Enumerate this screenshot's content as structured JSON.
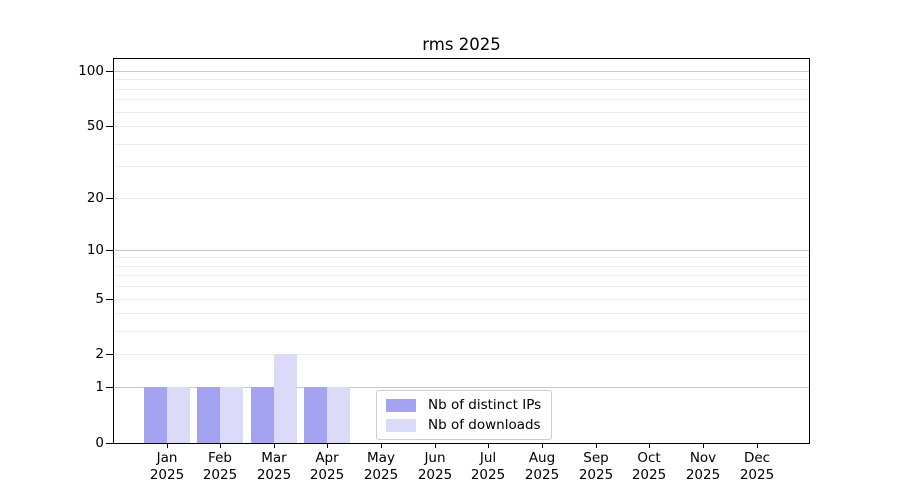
{
  "title": "rms 2025",
  "chart_data": {
    "type": "bar",
    "title": "rms 2025",
    "categories": [
      "Jan",
      "Feb",
      "Mar",
      "Apr",
      "May",
      "Jun",
      "Jul",
      "Aug",
      "Sep",
      "Oct",
      "Nov",
      "Dec"
    ],
    "category_year": "2025",
    "series": [
      {
        "name": "Nb of distinct IPs",
        "color": "#a3a3f2",
        "values": [
          1,
          1,
          1,
          1,
          0,
          0,
          0,
          0,
          0,
          0,
          0,
          0
        ]
      },
      {
        "name": "Nb of downloads",
        "color": "#dbdbf9",
        "values": [
          1,
          1,
          2,
          1,
          0,
          0,
          0,
          0,
          0,
          0,
          0,
          0
        ]
      }
    ],
    "xlabel": "",
    "ylabel": "",
    "yscale": "log1p",
    "ylim": [
      0,
      116
    ],
    "ytick_values": [
      0,
      1,
      2,
      5,
      10,
      20,
      50,
      100
    ],
    "ytick_labels": [
      "0",
      "1",
      "2",
      "5",
      "10",
      "20",
      "50",
      "100"
    ],
    "grid": true,
    "grid_major_values": [
      1,
      10,
      100
    ],
    "grid_minor_values": [
      2,
      3,
      4,
      5,
      6,
      7,
      8,
      9,
      20,
      30,
      40,
      50,
      60,
      70,
      80,
      90
    ],
    "legend_position": "lower center inside plot"
  }
}
